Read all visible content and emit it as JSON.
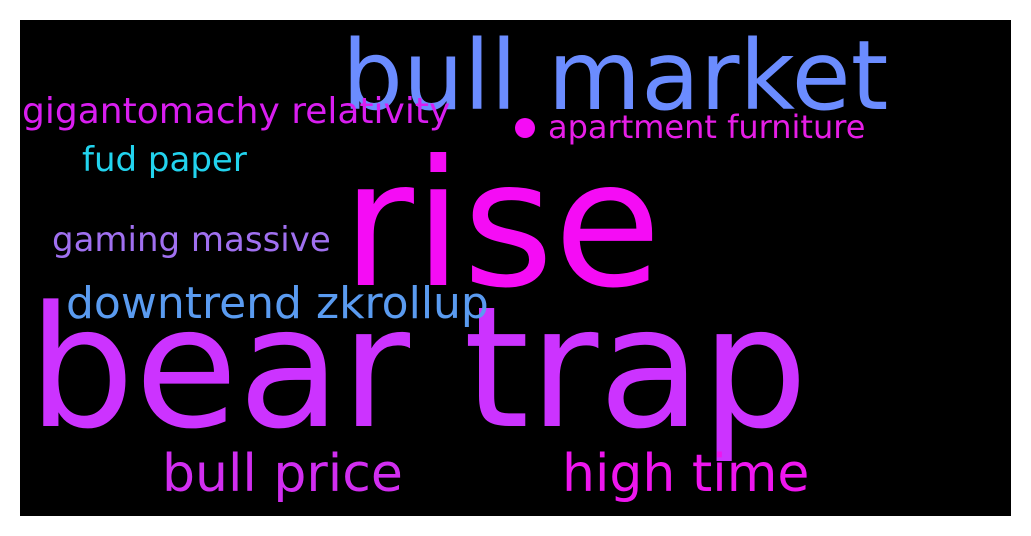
{
  "wordcloud": {
    "background_color": "#000000",
    "words": [
      {
        "id": "bull-market",
        "text": "bull market",
        "color": "#6b8cff"
      },
      {
        "id": "rise",
        "text": "rise",
        "color": "#f50cf5"
      },
      {
        "id": "bear-trap",
        "text": "bear trap",
        "color": "#cc33ff"
      },
      {
        "id": "gigantomachy-relativity",
        "text": "gigantomachy relativity",
        "color": "#d91ef0"
      },
      {
        "id": "apartment-furniture",
        "text": "apartment furniture",
        "color": "#e61ee6"
      },
      {
        "id": "fud-paper",
        "text": "fud paper",
        "color": "#22d3ee"
      },
      {
        "id": "gaming-massive",
        "text": "gaming massive",
        "color": "#a070f0"
      },
      {
        "id": "downtrend-zkrollup",
        "text": "downtrend zkrollup",
        "color": "#5a9bf0"
      },
      {
        "id": "bull-price",
        "text": "bull price",
        "color": "#d12ef0"
      },
      {
        "id": "high-time",
        "text": "high time",
        "color": "#ee16ee"
      }
    ],
    "dot_color": "#f50cf5"
  }
}
